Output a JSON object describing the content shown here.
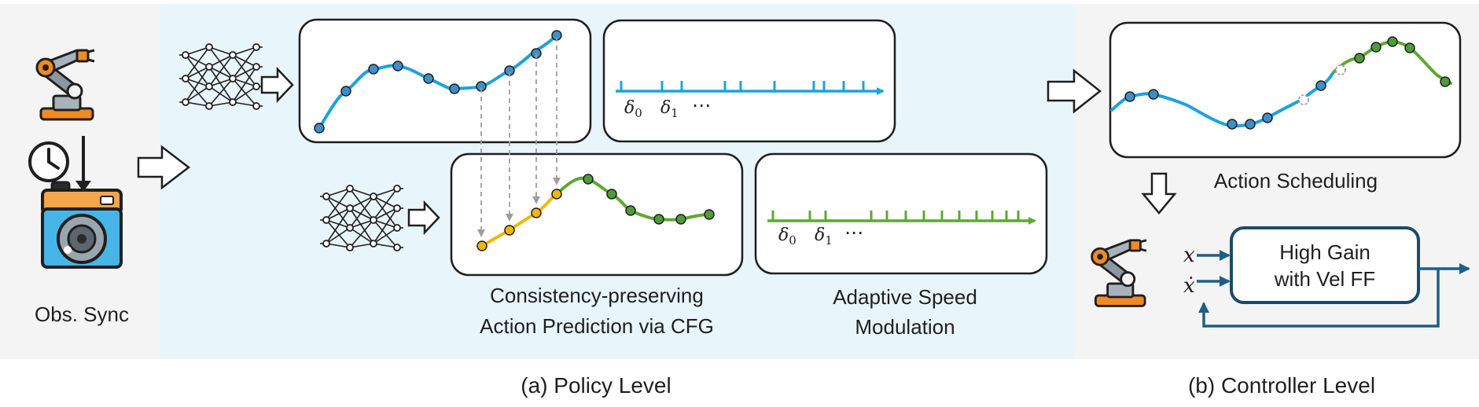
{
  "observation": {
    "label": "Obs. Sync",
    "icons": [
      "robot-arm-icon",
      "clock-icon",
      "camera-icon"
    ]
  },
  "policy_level": {
    "caption": "(a) Policy Level",
    "prediction_label_line1": "Consistency-preserving",
    "prediction_label_line2": "Action Prediction via CFG",
    "speed_label_line1": "Adaptive Speed",
    "speed_label_line2": "Modulation",
    "timeline_top": {
      "delta0": "δ",
      "sub0": "0",
      "delta1": "δ",
      "sub1": "1",
      "ellipsis": "⋯"
    },
    "timeline_bottom": {
      "delta0": "δ",
      "sub0": "0",
      "delta1": "δ",
      "sub1": "1",
      "ellipsis": "⋯"
    }
  },
  "controller_level": {
    "caption": "(b) Controller Level",
    "scheduling_label": "Action Scheduling",
    "controller_line1": "High Gain",
    "controller_line2": "with Vel FF",
    "input_x": "x",
    "input_xdot": "ẋ"
  },
  "colors": {
    "blue_line": "#1aa3de",
    "blue_node": "#3d8fc9",
    "yellow": "#f2b705",
    "green": "#5da832",
    "green_node": "#4f9a3a",
    "panel_bg": "#e8f5fb",
    "left_bg": "#f4f4f4",
    "controller_arrow": "#1d5f86"
  }
}
